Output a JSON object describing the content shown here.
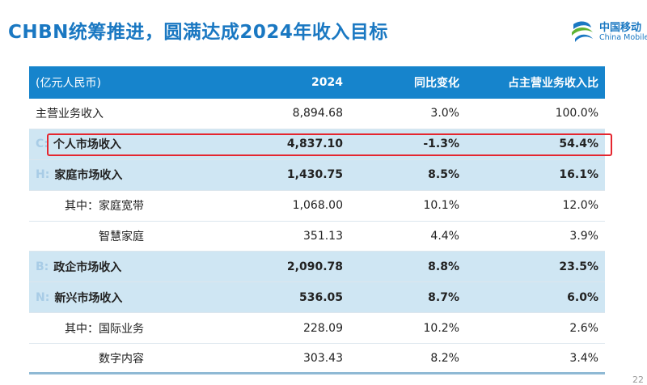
{
  "slide": {
    "title": "CHBN统筹推进，圆满达成2024年收入目标",
    "logo": {
      "cn": "中国移动",
      "en": "China Mobile",
      "color": "#1a78c2"
    },
    "page_number": "22"
  },
  "colors": {
    "header_bg": "#1684cc",
    "highlight_row_bg": "#cfe6f3",
    "highlight_box": "#e5262f",
    "title": "#1a78c2"
  },
  "table": {
    "headers": [
      "(亿元人民币)",
      "2024",
      "同比变化",
      "占主营业务收入比"
    ],
    "rows": [
      {
        "code": "",
        "label": "主营业务收入",
        "y2024": "8,894.68",
        "yoy": "3.0%",
        "share": "100.0%"
      },
      {
        "code": "C:",
        "label": "个人市场收入",
        "y2024": "4,837.10",
        "yoy": "-1.3%",
        "share": "54.4%"
      },
      {
        "code": "H:",
        "label": "家庭市场收入",
        "y2024": "1,430.75",
        "yoy": "8.5%",
        "share": "16.1%"
      },
      {
        "code": "",
        "label": "其中：家庭宽带",
        "y2024": "1,068.00",
        "yoy": "10.1%",
        "share": "12.0%"
      },
      {
        "code": "",
        "label": "智慧家庭",
        "y2024": "351.13",
        "yoy": "4.4%",
        "share": "3.9%"
      },
      {
        "code": "B:",
        "label": "政企市场收入",
        "y2024": "2,090.78",
        "yoy": "8.8%",
        "share": "23.5%"
      },
      {
        "code": "N:",
        "label": "新兴市场收入",
        "y2024": "536.05",
        "yoy": "8.7%",
        "share": "6.0%"
      },
      {
        "code": "",
        "label": "其中：国际业务",
        "y2024": "228.09",
        "yoy": "10.2%",
        "share": "2.6%"
      },
      {
        "code": "",
        "label": "数字内容",
        "y2024": "303.43",
        "yoy": "8.2%",
        "share": "3.4%"
      }
    ]
  }
}
